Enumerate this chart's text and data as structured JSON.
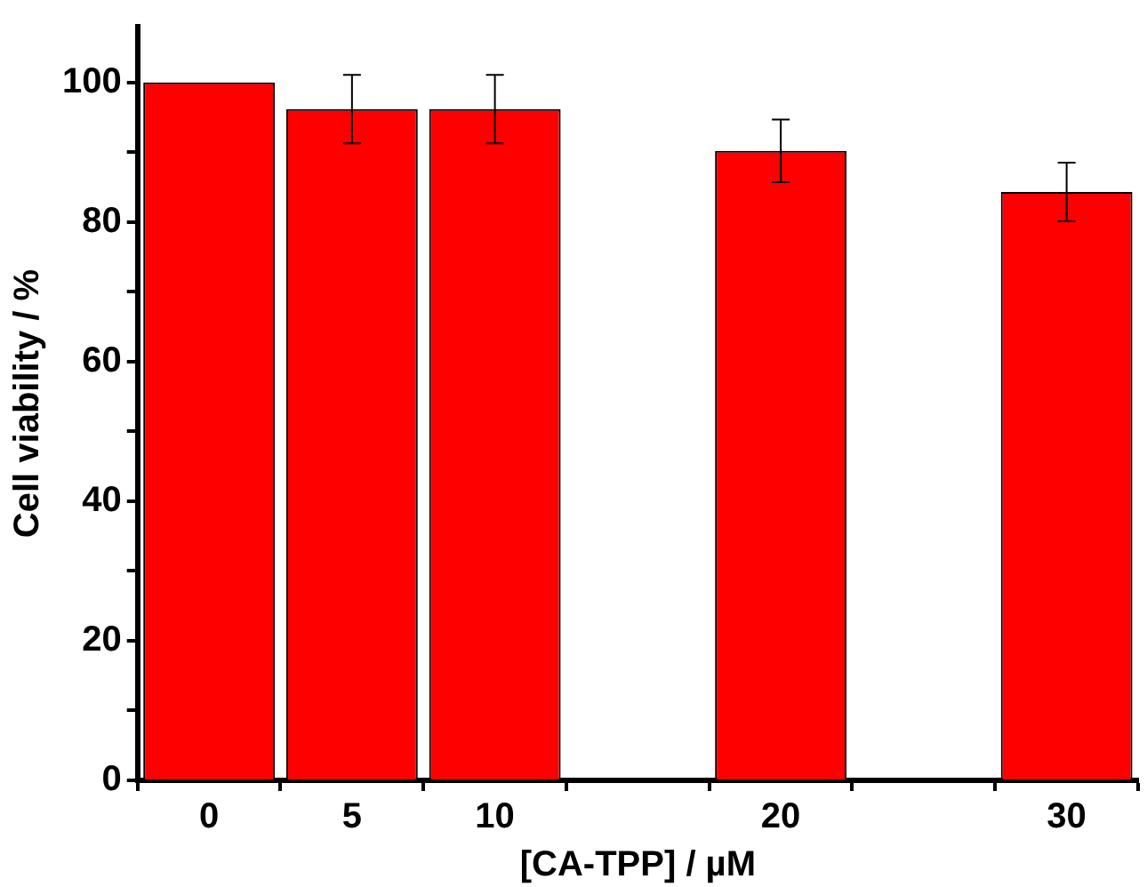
{
  "chart_data": {
    "type": "bar",
    "xlabel": "[CA-TPP] / µM",
    "ylabel": "Cell viability / %",
    "categories": [
      "0",
      "5",
      "10",
      null,
      "20",
      null,
      "30"
    ],
    "values": [
      100,
      96.2,
      96.2,
      null,
      90.2,
      null,
      84.3
    ],
    "errors": [
      null,
      4.9,
      4.9,
      null,
      4.5,
      null,
      4.2
    ],
    "color": "#ff0000",
    "ylim": [
      0,
      108
    ],
    "yticks": [
      0,
      {
        "value": 10,
        "label": null
      },
      20,
      {
        "value": 30,
        "label": null
      },
      40,
      {
        "value": 50,
        "label": null
      },
      60,
      {
        "value": 70,
        "label": null
      },
      80,
      {
        "value": 90,
        "label": null
      },
      100
    ],
    "grid": false
  }
}
